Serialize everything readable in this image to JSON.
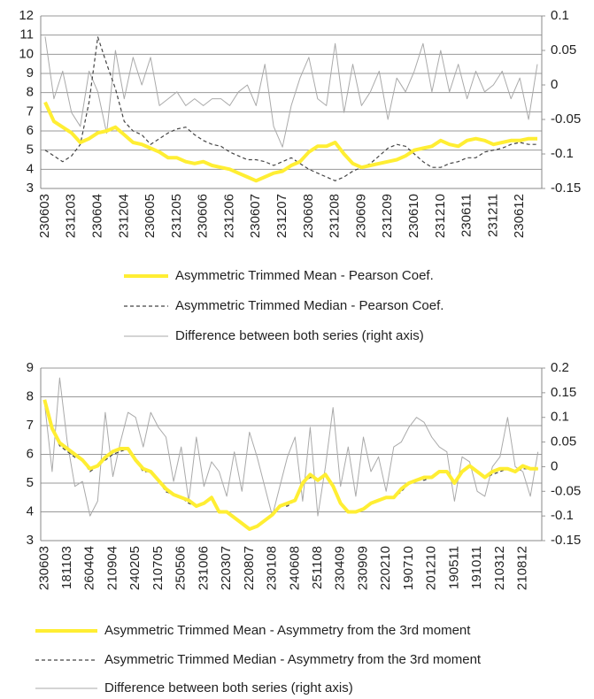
{
  "chart_data": [
    {
      "type": "line",
      "grid": true,
      "legend": "bottom",
      "categories": [
        "230603",
        null,
        null,
        "231203",
        null,
        null,
        "230604",
        null,
        null,
        "231204",
        null,
        null,
        "230605",
        null,
        null,
        "231205",
        null,
        null,
        "230606",
        null,
        null,
        "231206",
        null,
        null,
        "230607",
        null,
        null,
        "231207",
        null,
        null,
        "230608",
        null,
        null,
        "231208",
        null,
        null,
        "230609",
        null,
        null,
        "231209",
        null,
        null,
        "230610",
        null,
        null,
        "231210",
        null,
        null,
        "230611",
        null,
        null,
        "231211",
        null,
        null,
        "230612",
        null,
        null
      ],
      "ylim": [
        3,
        12
      ],
      "yticks": [
        3,
        4,
        5,
        6,
        7,
        8,
        9,
        10,
        11,
        12
      ],
      "y2lim": [
        -0.15,
        0.1
      ],
      "y2ticks": [
        -0.15,
        -0.1,
        -0.05,
        0,
        0.05,
        0.1
      ],
      "series": [
        {
          "name": "Asymmetric Trimmed Mean - Pearson Coef.",
          "color": "#ffee33",
          "line_style": "solid",
          "values": [
            7.5,
            6.5,
            6.2,
            5.9,
            5.4,
            5.6,
            5.9,
            6.0,
            6.2,
            5.8,
            5.4,
            5.3,
            5.1,
            4.9,
            4.6,
            4.6,
            4.4,
            4.3,
            4.4,
            4.2,
            4.1,
            4.0,
            3.8,
            3.6,
            3.4,
            3.6,
            3.8,
            3.9,
            4.2,
            4.4,
            4.9,
            5.2,
            5.2,
            5.4,
            4.8,
            4.3,
            4.1,
            4.2,
            4.3,
            4.4,
            4.5,
            4.7,
            5.0,
            5.1,
            5.2,
            5.5,
            5.3,
            5.2,
            5.5,
            5.6,
            5.5,
            5.3,
            5.4,
            5.5,
            5.5,
            5.6,
            5.6
          ]
        },
        {
          "name": "Asymmetric Trimmed Median - Pearson Coef.",
          "color": "#444444",
          "line_style": "dashed",
          "values": [
            5.0,
            4.7,
            4.4,
            4.7,
            5.3,
            7.5,
            10.9,
            9.5,
            8.2,
            6.5,
            6.0,
            5.8,
            5.3,
            5.6,
            5.9,
            6.1,
            6.2,
            5.8,
            5.5,
            5.3,
            5.2,
            4.9,
            4.7,
            4.5,
            4.5,
            4.4,
            4.2,
            4.4,
            4.6,
            4.3,
            4.0,
            3.8,
            3.6,
            3.4,
            3.6,
            3.9,
            4.1,
            4.3,
            4.7,
            5.1,
            5.3,
            5.2,
            4.8,
            4.4,
            4.1,
            4.1,
            4.3,
            4.4,
            4.6,
            4.6,
            4.9,
            5.0,
            5.1,
            5.3,
            5.4,
            5.3,
            5.3
          ]
        },
        {
          "name": "Difference between both series (right axis)",
          "color": "#aaaaaa",
          "line_style": "thin",
          "axis": "y2",
          "values": [
            0.07,
            -0.02,
            0.02,
            -0.04,
            -0.06,
            0.02,
            -0.01,
            -0.07,
            0.05,
            -0.02,
            0.04,
            0.0,
            0.04,
            -0.03,
            -0.02,
            -0.01,
            -0.03,
            -0.02,
            -0.03,
            -0.02,
            -0.02,
            -0.03,
            -0.01,
            0.0,
            -0.03,
            0.03,
            -0.06,
            -0.09,
            -0.03,
            0.01,
            0.04,
            -0.02,
            -0.03,
            0.06,
            -0.04,
            0.03,
            -0.03,
            -0.01,
            0.02,
            -0.05,
            0.01,
            -0.01,
            0.02,
            0.06,
            -0.01,
            0.05,
            -0.01,
            0.03,
            -0.02,
            0.02,
            -0.01,
            0.0,
            0.02,
            -0.02,
            0.01,
            -0.05,
            0.03
          ]
        }
      ]
    },
    {
      "type": "line",
      "grid": true,
      "legend": "bottom",
      "categories": [
        "230603",
        null,
        null,
        "181103",
        null,
        null,
        "260404",
        null,
        null,
        "210904",
        null,
        null,
        "240205",
        null,
        null,
        "210705",
        null,
        null,
        "250506",
        null,
        null,
        "231006",
        null,
        null,
        "220307",
        null,
        null,
        "220807",
        null,
        null,
        "230108",
        null,
        null,
        "240608",
        null,
        null,
        "251108",
        null,
        null,
        "230409",
        null,
        null,
        "230909",
        null,
        null,
        "220210",
        null,
        null,
        "190710",
        null,
        null,
        "201210",
        null,
        null,
        "190511",
        null,
        null,
        "191011",
        null,
        null,
        "210312",
        null,
        null,
        "210812",
        null,
        null
      ],
      "ylim": [
        3,
        9
      ],
      "yticks": [
        3,
        4,
        5,
        6,
        7,
        8,
        9
      ],
      "y2lim": [
        -0.15,
        0.2
      ],
      "y2ticks": [
        -0.15,
        -0.1,
        -0.05,
        0,
        0.05,
        0.1,
        0.15,
        0.2
      ],
      "series": [
        {
          "name": "Asymmetric Trimmed Mean - Asymmetry from the 3rd moment",
          "color": "#ffee33",
          "line_style": "solid",
          "values": [
            7.9,
            6.9,
            6.4,
            6.2,
            6.0,
            5.8,
            5.5,
            5.6,
            5.9,
            6.1,
            6.2,
            6.2,
            5.8,
            5.5,
            5.4,
            5.1,
            4.8,
            4.6,
            4.5,
            4.4,
            4.2,
            4.3,
            4.5,
            4.0,
            4.0,
            3.8,
            3.6,
            3.4,
            3.5,
            3.7,
            3.9,
            4.2,
            4.3,
            4.4,
            5.0,
            5.3,
            5.1,
            5.3,
            4.9,
            4.3,
            4.0,
            4.0,
            4.1,
            4.3,
            4.4,
            4.5,
            4.5,
            4.8,
            5.0,
            5.1,
            5.2,
            5.2,
            5.4,
            5.4,
            5.0,
            5.4,
            5.6,
            5.4,
            5.2,
            5.4,
            5.5,
            5.5,
            5.4,
            5.6,
            5.5,
            5.5
          ]
        },
        {
          "name": "Asymmetric Trimmed Median - Asymmetry from the 3rd moment",
          "color": "#444444",
          "line_style": "dashed",
          "values": [
            7.8,
            6.9,
            6.3,
            6.1,
            5.9,
            5.8,
            5.4,
            5.6,
            5.8,
            6.0,
            6.1,
            6.2,
            5.8,
            5.4,
            5.4,
            5.1,
            4.7,
            4.6,
            4.5,
            4.3,
            4.2,
            4.3,
            4.5,
            4.0,
            4.0,
            3.8,
            3.6,
            3.4,
            3.5,
            3.7,
            3.9,
            4.2,
            4.2,
            4.4,
            5.0,
            5.2,
            5.1,
            5.3,
            4.9,
            4.3,
            4.0,
            4.0,
            4.1,
            4.3,
            4.4,
            4.5,
            4.5,
            4.7,
            5.0,
            5.1,
            5.1,
            5.2,
            5.4,
            5.4,
            5.0,
            5.4,
            5.6,
            5.4,
            5.2,
            5.3,
            5.4,
            5.5,
            5.4,
            5.5,
            5.5,
            5.5
          ]
        },
        {
          "name": "Difference between both series (right axis)",
          "color": "#aaaaaa",
          "line_style": "thin",
          "axis": "y2",
          "values": [
            0.13,
            -0.01,
            0.18,
            0.05,
            -0.04,
            -0.03,
            -0.1,
            -0.07,
            0.11,
            -0.02,
            0.05,
            0.11,
            0.1,
            0.04,
            0.11,
            0.08,
            0.06,
            -0.03,
            0.04,
            -0.07,
            0.06,
            -0.04,
            0.01,
            -0.01,
            -0.06,
            0.03,
            -0.05,
            0.07,
            0.02,
            -0.04,
            -0.1,
            -0.04,
            0.02,
            0.06,
            -0.07,
            0.08,
            -0.1,
            0.0,
            0.12,
            -0.04,
            0.04,
            -0.06,
            0.06,
            -0.01,
            0.02,
            -0.05,
            0.04,
            0.05,
            0.08,
            0.1,
            0.09,
            0.06,
            0.04,
            0.03,
            -0.07,
            0.02,
            0.01,
            -0.05,
            -0.06,
            0.0,
            0.02,
            0.1,
            0.0,
            -0.01,
            -0.06,
            0.03
          ]
        }
      ]
    }
  ]
}
